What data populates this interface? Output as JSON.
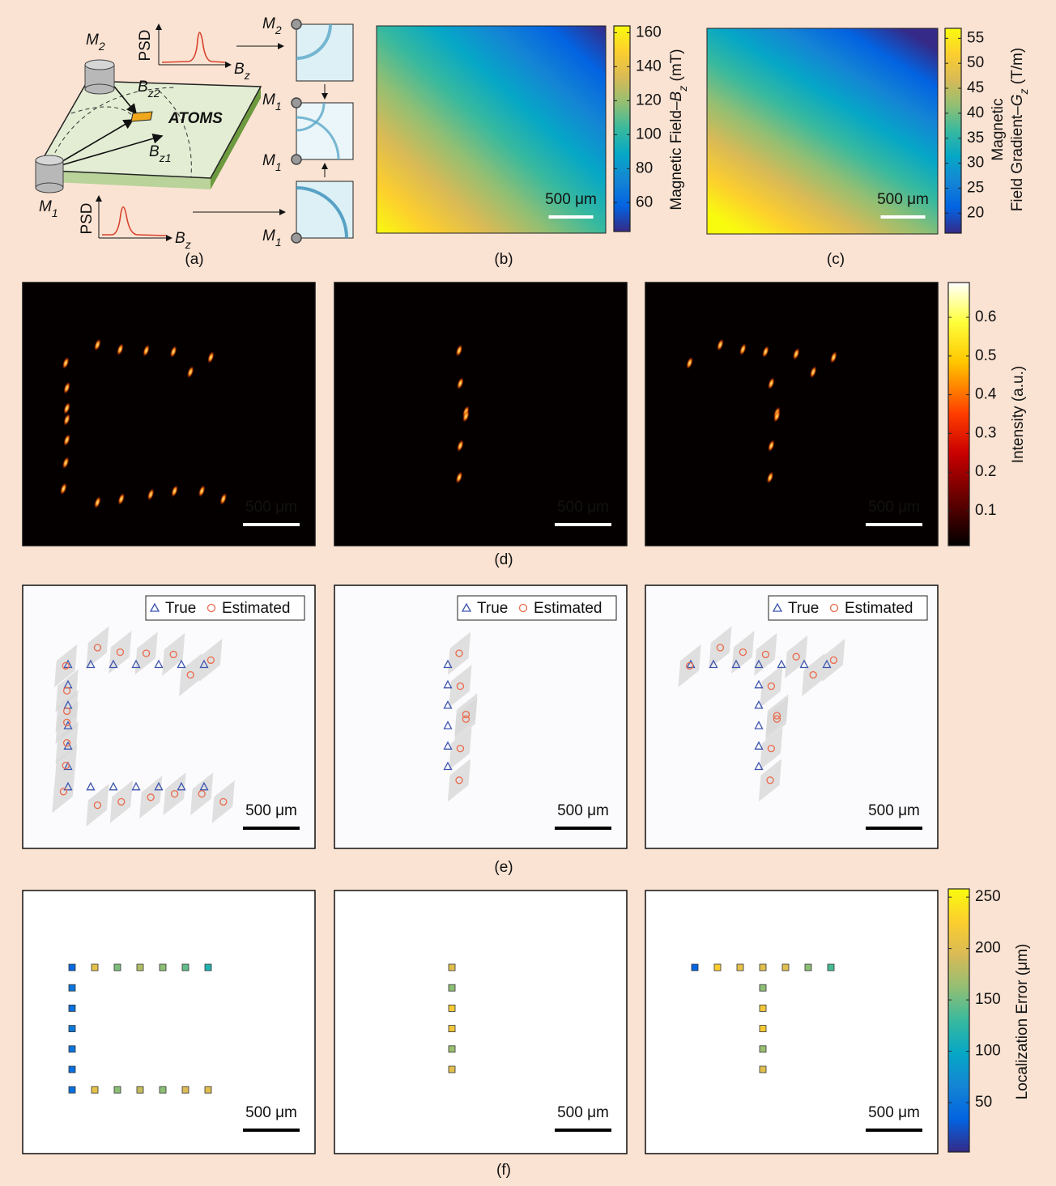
{
  "panel_a": {
    "caption": "(a)",
    "atoms": "ATOMS",
    "psd": "PSD",
    "m1": {
      "base": "M",
      "sub": "1"
    },
    "m2": {
      "base": "M",
      "sub": "2"
    },
    "bz": {
      "base": "B",
      "sub": "z"
    },
    "bz1": {
      "base": "B",
      "sub": "z1"
    },
    "bz2": {
      "base": "B",
      "sub": "z2"
    }
  },
  "chart_data": [
    {
      "type": "field_map",
      "caption": "(b)",
      "scale_bar": {
        "label": "500 μm",
        "length": 500
      },
      "colorbar": {
        "label": {
          "prefix": "Magnetic Field–",
          "var": "B",
          "sub": "z",
          "suffix": " (mT)"
        },
        "lim": [
          43,
          164
        ],
        "ticks": [
          60,
          80,
          100,
          120,
          140,
          160
        ],
        "colormap": "parula"
      }
    },
    {
      "type": "field_map",
      "caption": "(c)",
      "scale_bar": {
        "label": "500 μm",
        "length": 500
      },
      "colorbar": {
        "label": {
          "line1": "Magnetic",
          "prefix": "Field Gradient–",
          "var": "G",
          "sub": "z",
          "suffix": " (T/m)"
        },
        "lim": [
          16,
          57
        ],
        "ticks": [
          20,
          25,
          30,
          35,
          40,
          45,
          50,
          55
        ],
        "colormap": "parula"
      }
    },
    {
      "type": "intensity_map",
      "caption": "(d)",
      "scale_bar": {
        "label": "500 μm",
        "length": 500
      },
      "colorbar": {
        "label": "Intensity (a.u.)",
        "lim": [
          0.01,
          0.69
        ],
        "ticks": [
          0.1,
          0.2,
          0.3,
          0.4,
          0.5,
          0.6
        ],
        "colormap": "hot"
      }
    },
    {
      "type": "scatter",
      "caption": "(e)",
      "xlim": [
        0,
        2580
      ],
      "ylim": [
        0,
        2320
      ],
      "scale_bar": {
        "label": "500 μm",
        "length": 500
      },
      "series": [
        {
          "name": "True",
          "color": "#3d55b0",
          "marker": "triangle"
        },
        {
          "name": "Estimated",
          "color": "#ea6a4c",
          "marker": "circle"
        }
      ],
      "panels": [
        {
          "true_x": [
            400,
            600,
            800,
            1000,
            1200,
            1400,
            1600,
            400,
            400,
            400,
            400,
            400,
            400,
            600,
            800,
            1000,
            1200,
            1400,
            1600
          ],
          "true_y": [
            700,
            700,
            700,
            700,
            700,
            700,
            700,
            880,
            1060,
            1240,
            1420,
            1600,
            1780,
            1780,
            1780,
            1780,
            1780,
            1780,
            1780
          ],
          "estimated_x": [
            380,
            660,
            860,
            1090,
            1330,
            1480,
            1660,
            390,
            390,
            390,
            390,
            380,
            360,
            660,
            870,
            1130,
            1340,
            1580,
            1770
          ],
          "estimated_y": [
            710,
            550,
            590,
            600,
            610,
            790,
            660,
            930,
            1110,
            1210,
            1390,
            1590,
            1820,
            1940,
            1910,
            1870,
            1840,
            1840,
            1910
          ]
        },
        {
          "true_x": [
            1000,
            1000,
            1000,
            1000,
            1000,
            1000
          ],
          "true_y": [
            700,
            880,
            1060,
            1240,
            1420,
            1600
          ],
          "estimated_x": [
            1100,
            1110,
            1160,
            1160,
            1110,
            1100
          ],
          "estimated_y": [
            600,
            890,
            1140,
            1180,
            1440,
            1720
          ]
        },
        {
          "true_x": [
            400,
            600,
            800,
            1000,
            1200,
            1400,
            1600,
            1000,
            1000,
            1000,
            1000,
            1000
          ],
          "true_y": [
            700,
            700,
            700,
            700,
            700,
            700,
            700,
            880,
            1060,
            1240,
            1420,
            1600
          ],
          "estimated_x": [
            390,
            660,
            860,
            1060,
            1330,
            1480,
            1660,
            1110,
            1160,
            1160,
            1110,
            1100
          ],
          "estimated_y": [
            710,
            550,
            590,
            610,
            630,
            790,
            660,
            890,
            1150,
            1180,
            1440,
            1720
          ]
        }
      ]
    },
    {
      "type": "error_map",
      "caption": "(f)",
      "scale_bar": {
        "label": "500 μm",
        "length": 500
      },
      "colorbar": {
        "label": "Localization Error (μm)",
        "lim": [
          2,
          258
        ],
        "ticks": [
          50,
          100,
          150,
          200,
          250
        ],
        "colormap": "parula"
      },
      "panels": [
        {
          "errors": [
            40,
            205,
            155,
            175,
            160,
            145,
            115,
            50,
            45,
            55,
            50,
            45,
            45,
            205,
            160,
            185,
            160,
            195,
            200
          ]
        },
        {
          "errors": [
            200,
            160,
            220,
            215,
            165,
            200
          ]
        },
        {
          "errors": [
            35,
            225,
            205,
            200,
            200,
            160,
            135,
            160,
            215,
            220,
            165,
            200
          ]
        }
      ]
    }
  ]
}
